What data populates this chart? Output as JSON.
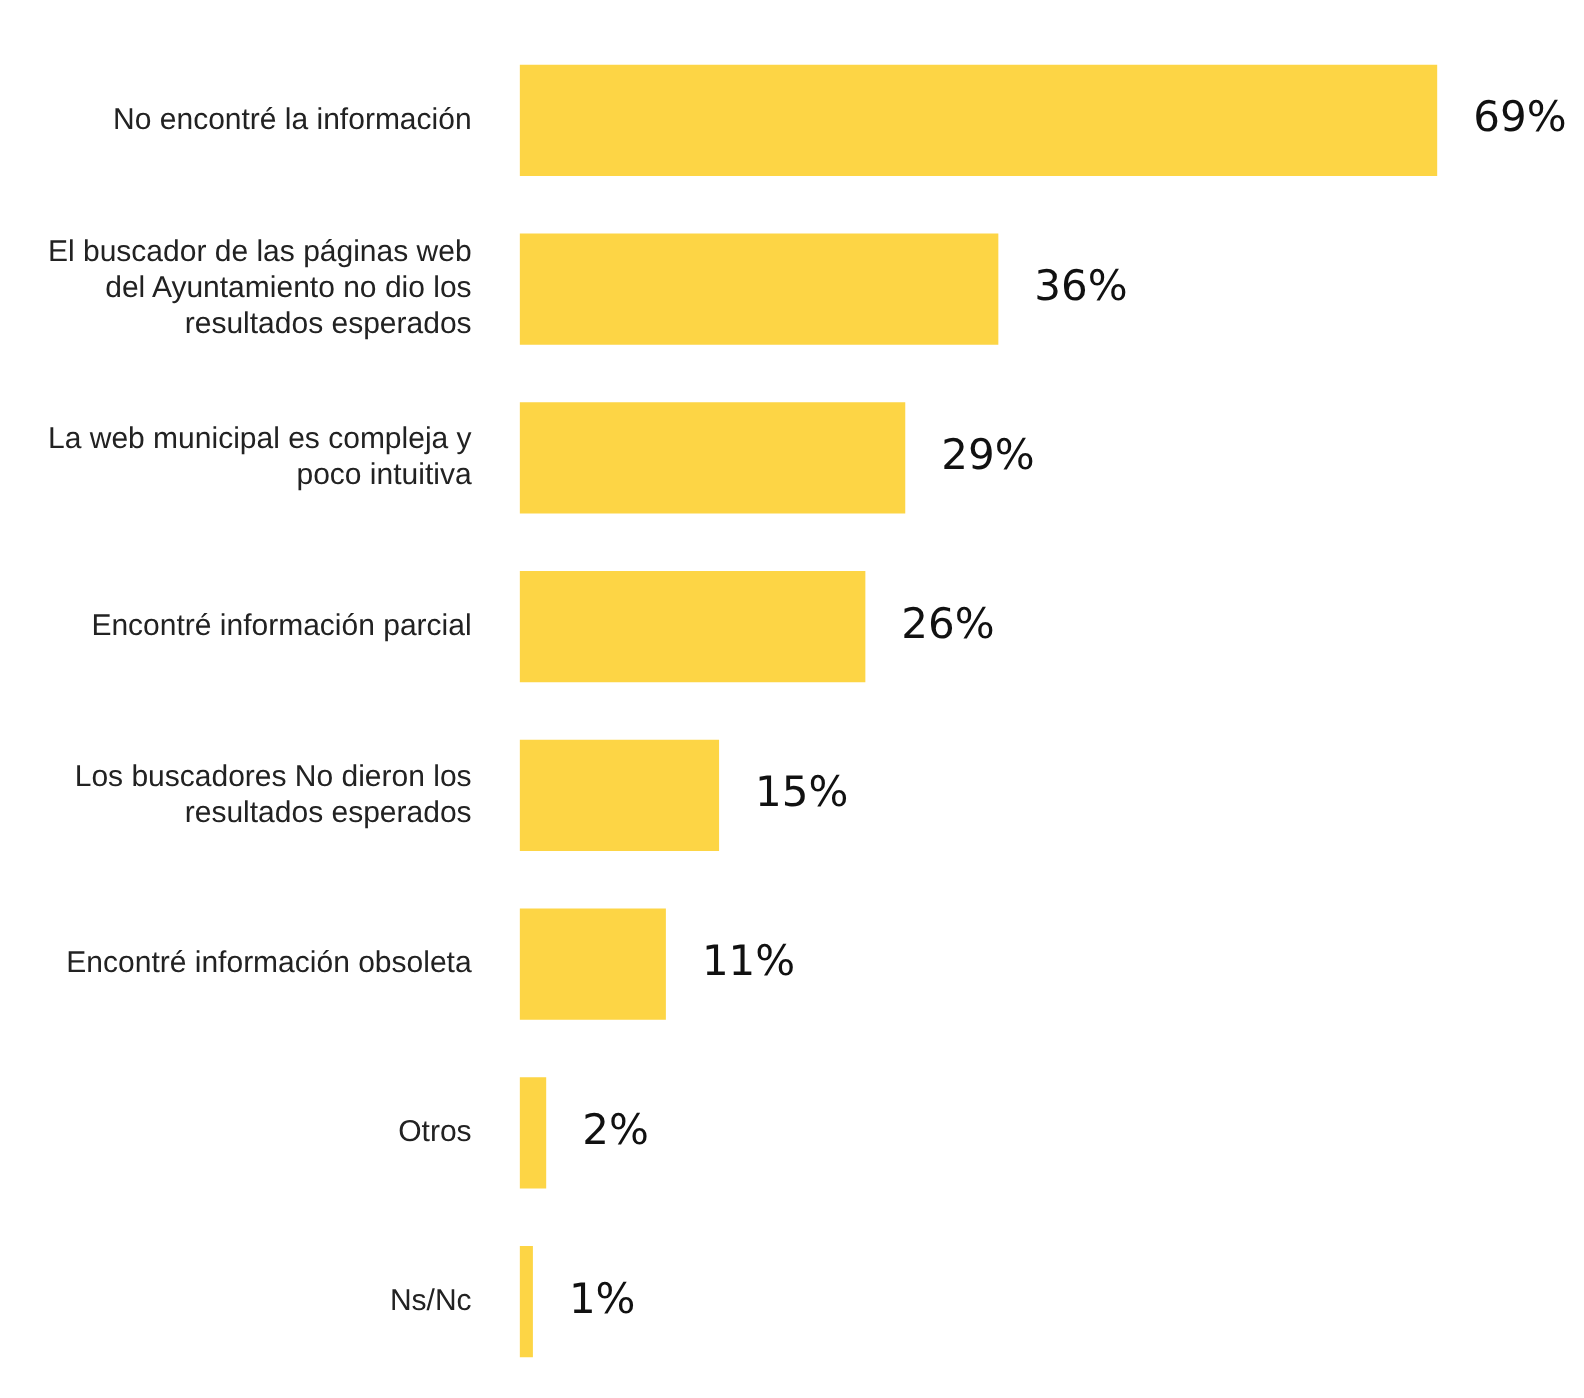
{
  "chart_data": {
    "type": "bar",
    "orientation": "horizontal",
    "categories": [
      "No encontré la información",
      "El buscador de las páginas web del Ayuntamiento no dio los resultados esperados",
      "La web municipal es compleja y poco intuitiva",
      "Encontré información parcial",
      "Los buscadores No dieron los resultados esperados",
      "Encontré información obsoleta",
      "Otros",
      "Ns/Nc"
    ],
    "values": [
      69,
      36,
      29,
      26,
      15,
      11,
      2,
      1
    ],
    "value_labels": [
      "69%",
      "36%",
      "29%",
      "26%",
      "15%",
      "11%",
      "2%",
      "1%"
    ],
    "color": "#fdd545"
  }
}
